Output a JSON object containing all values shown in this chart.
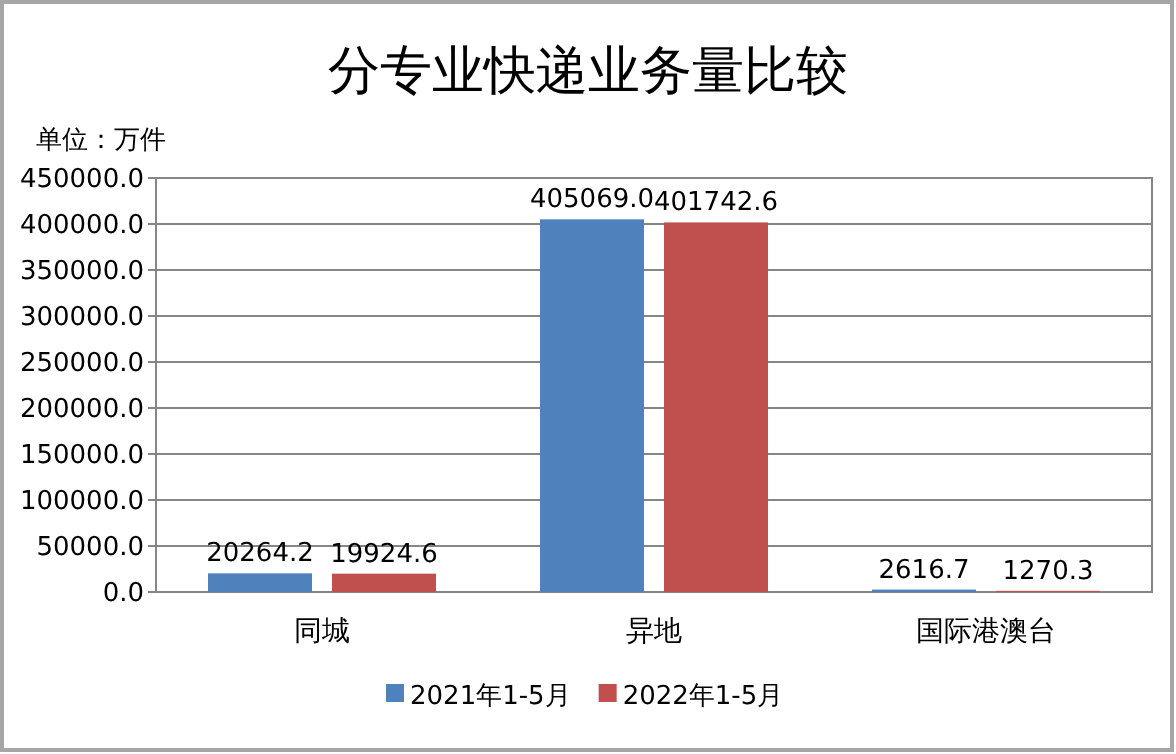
{
  "chart_data": {
    "type": "bar",
    "title": "分专业快递业务量比较",
    "ylabel": "单位：万件",
    "categories": [
      "同城",
      "异地",
      "国际港澳台"
    ],
    "series": [
      {
        "name": "2021年1-5月",
        "color": "#4f81bd",
        "values": [
          20264.2,
          405069.0,
          2616.7
        ],
        "value_labels": [
          "20264.2",
          "405069.0",
          "2616.7"
        ]
      },
      {
        "name": "2022年1-5月",
        "color": "#c0504d",
        "values": [
          19924.6,
          401742.6,
          1270.3
        ],
        "value_labels": [
          "19924.6",
          "401742.6",
          "1270.3"
        ]
      }
    ],
    "ylim": [
      0,
      450000
    ],
    "yticks": [
      {
        "value": 0,
        "label": "0.0"
      },
      {
        "value": 50000,
        "label": "50000.0"
      },
      {
        "value": 100000,
        "label": "100000.0"
      },
      {
        "value": 150000,
        "label": "150000.0"
      },
      {
        "value": 200000,
        "label": "200000.0"
      },
      {
        "value": 250000,
        "label": "250000.0"
      },
      {
        "value": 300000,
        "label": "300000.0"
      },
      {
        "value": 350000,
        "label": "350000.0"
      },
      {
        "value": 400000,
        "label": "400000.0"
      },
      {
        "value": 450000,
        "label": "450000.0"
      }
    ],
    "grid": "y",
    "legend": "bottom"
  }
}
